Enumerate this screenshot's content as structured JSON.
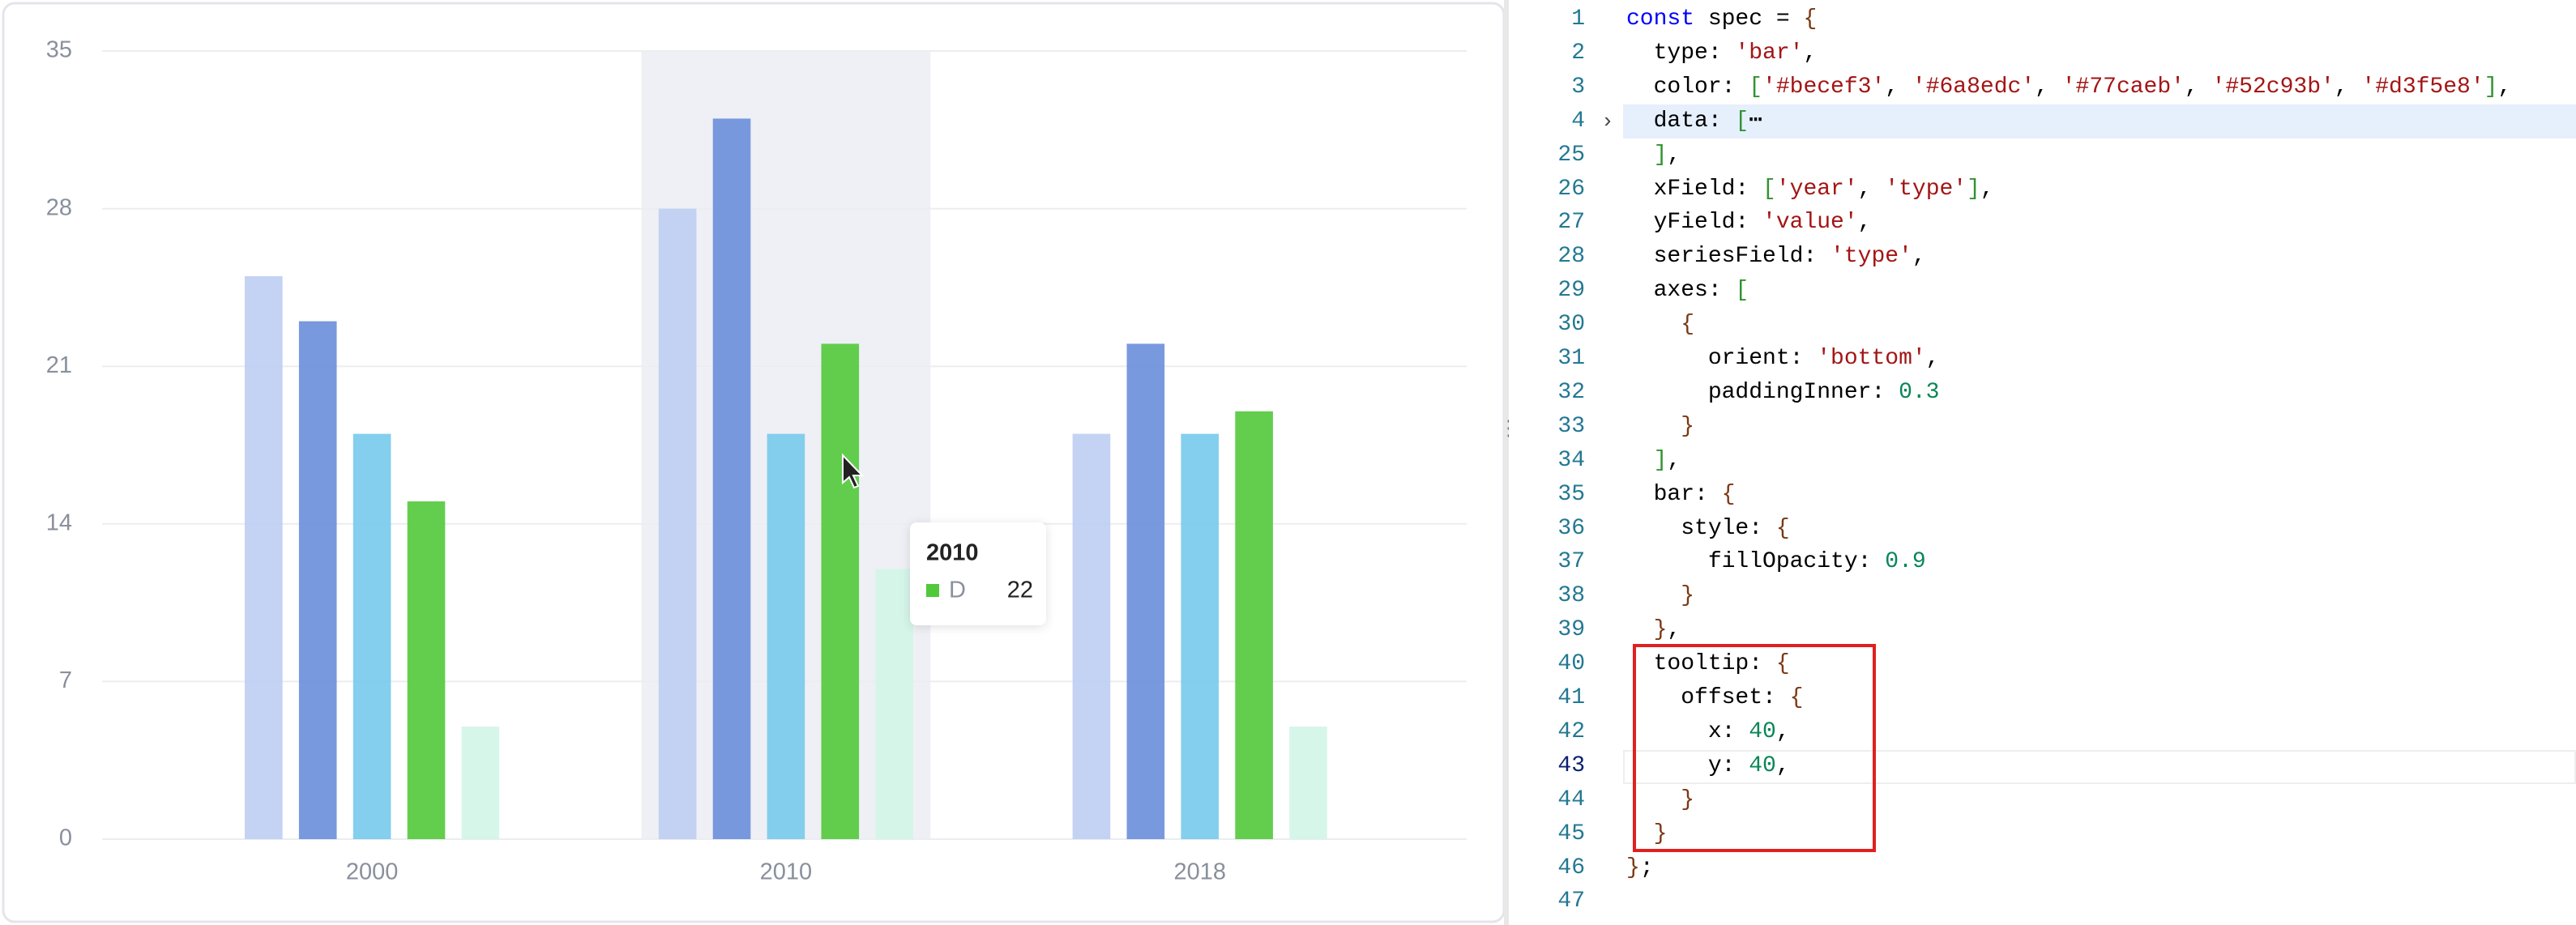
{
  "chart_data": {
    "type": "bar",
    "categories": [
      "2000",
      "2010",
      "2018"
    ],
    "series": [
      {
        "color": "#becef3",
        "values": [
          25,
          28,
          18
        ]
      },
      {
        "color": "#6a8edc",
        "values": [
          23,
          32,
          22
        ]
      },
      {
        "color": "#77caeb",
        "values": [
          18,
          18,
          18
        ]
      },
      {
        "name": "D",
        "color": "#52c93b",
        "values": [
          15,
          22,
          19
        ]
      },
      {
        "color": "#d3f5e8",
        "values": [
          5,
          12,
          5
        ]
      }
    ],
    "fill_opacity": 0.9,
    "ylim": [
      0,
      35
    ],
    "yticks": [
      0,
      7,
      14,
      21,
      28,
      35
    ],
    "grid": true,
    "highlight_category": 1,
    "tooltip_series": 3
  },
  "code": {
    "lines": [
      {
        "number": 1,
        "text": "const spec = {"
      },
      {
        "number": 2,
        "text": "  type: 'bar',"
      },
      {
        "number": 3,
        "text": "  color: ['#becef3', '#6a8edc', '#77caeb', '#52c93b', '#d3f5e8'],"
      },
      {
        "number": 4,
        "text": "  data: [⋯"
      },
      {
        "number": 25,
        "text": "  ],"
      },
      {
        "number": 26,
        "text": "  xField: ['year', 'type'],"
      },
      {
        "number": 27,
        "text": "  yField: 'value',"
      },
      {
        "number": 28,
        "text": "  seriesField: 'type',"
      },
      {
        "number": 29,
        "text": "  axes: ["
      },
      {
        "number": 30,
        "text": "    {"
      },
      {
        "number": 31,
        "text": "      orient: 'bottom',"
      },
      {
        "number": 32,
        "text": "      paddingInner: 0.3"
      },
      {
        "number": 33,
        "text": "    }"
      },
      {
        "number": 34,
        "text": "  ],"
      },
      {
        "number": 35,
        "text": "  bar: {"
      },
      {
        "number": 36,
        "text": "    style: {"
      },
      {
        "number": 37,
        "text": "      fillOpacity: 0.9"
      },
      {
        "number": 38,
        "text": "    }"
      },
      {
        "number": 39,
        "text": "  },"
      },
      {
        "number": 40,
        "text": "  tooltip: {"
      },
      {
        "number": 41,
        "text": "    offset: {"
      },
      {
        "number": 42,
        "text": "      x: 40,"
      },
      {
        "number": 43,
        "text": "      y: 40,"
      },
      {
        "number": 44,
        "text": "    }"
      },
      {
        "number": 45,
        "text": "  }"
      },
      {
        "number": 46,
        "text": "};"
      },
      {
        "number": 47
      }
    ],
    "folded_line": 3,
    "current_line": 22
  }
}
